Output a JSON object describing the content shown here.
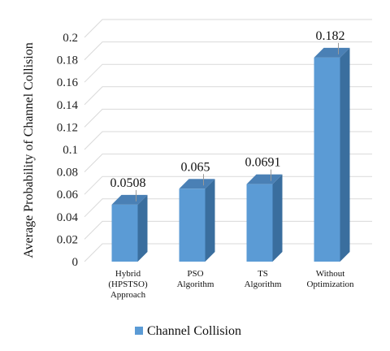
{
  "chart_data": {
    "type": "bar",
    "categories": [
      [
        "Hybrid",
        "(HPSTSO)",
        "Approach"
      ],
      [
        "PSO",
        "Algorithm"
      ],
      [
        "TS",
        "Algorithm"
      ],
      [
        "Without",
        "Optimization"
      ]
    ],
    "series": [
      {
        "name": "Channel Collision",
        "values": [
          0.0508,
          0.065,
          0.0691,
          0.182
        ],
        "color": "#5B9BD5"
      }
    ],
    "data_labels": [
      "0.0508",
      "0.065",
      "0.0691",
      "0.182"
    ],
    "yticks": [
      "0",
      "0.02",
      "0.04",
      "0.06",
      "0.08",
      "0.1",
      "0.12",
      "0.14",
      "0.16",
      "0.18",
      "0.2"
    ],
    "ylim": [
      0,
      0.2
    ],
    "title": "",
    "xlabel": "",
    "ylabel": "Average Probability of Channel Collision",
    "grid": true,
    "legend_position": "bottom"
  }
}
